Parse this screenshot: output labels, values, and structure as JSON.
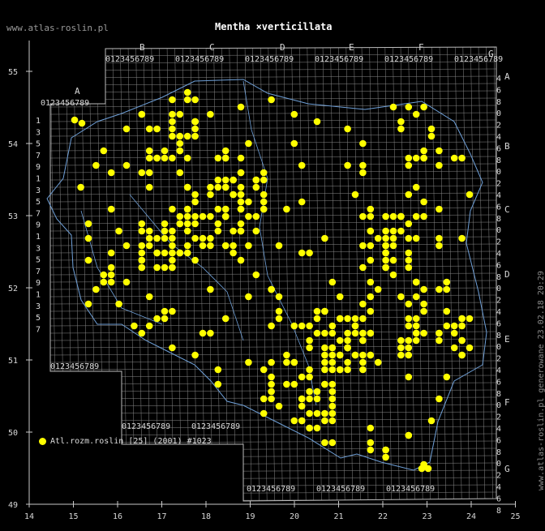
{
  "header": {
    "site": "www.atlas-roslin.pl",
    "title": "Mentha ×verticillata"
  },
  "side_text": "www.atlas-roslin.pl generowane 23.02.18 20:29",
  "legend": {
    "label": "Atl.rozm.roslin [25] (2001) #1023",
    "color": "#ffff00"
  },
  "map": {
    "lon_ticks": [
      "14",
      "15",
      "16",
      "17",
      "18",
      "19",
      "20",
      "21",
      "22",
      "23",
      "24",
      "25"
    ],
    "lat_ticks": [
      "49",
      "50",
      "51",
      "52",
      "53",
      "54",
      "55"
    ],
    "column_letters": [
      "A",
      "B",
      "C",
      "D",
      "E",
      "F",
      "G"
    ],
    "row_letters": [
      "A",
      "B",
      "C",
      "D",
      "E",
      "F",
      "G"
    ],
    "grid_digits": "0123456789",
    "colors": {
      "grid": "#888888",
      "border": "#6fa0d8",
      "dots": "#ffff00"
    }
  }
}
